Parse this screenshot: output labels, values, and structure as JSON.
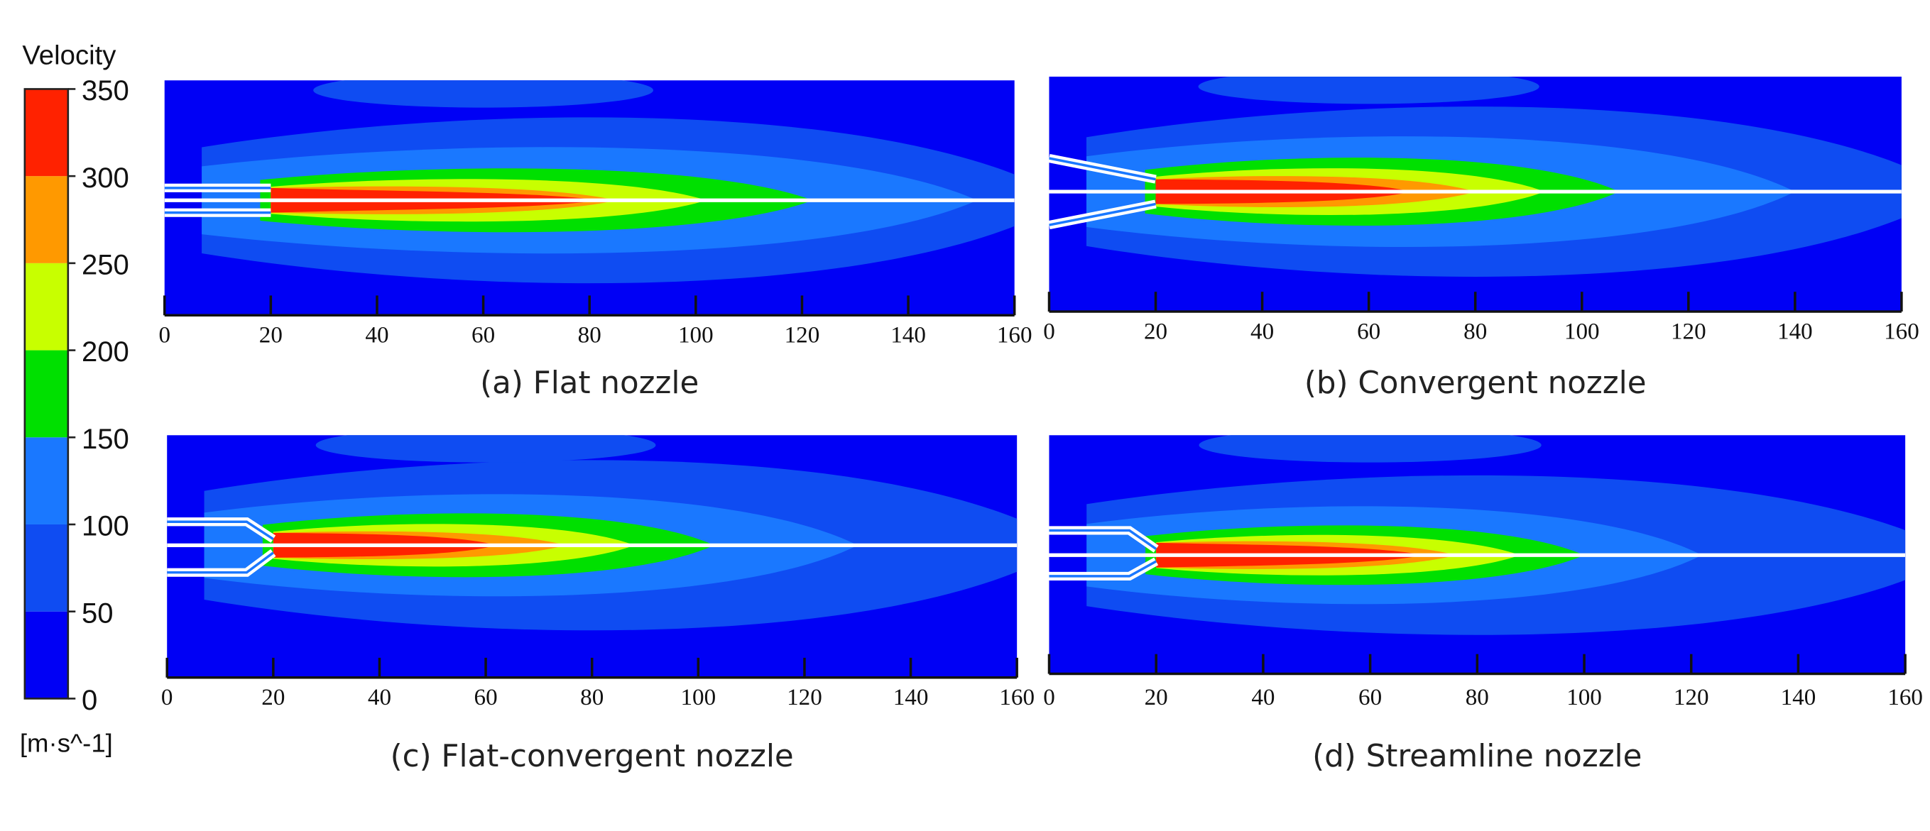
{
  "chart_data": {
    "type": "heatmap",
    "colorbar": {
      "title": "Velocity",
      "unit": "[m·s^-1]",
      "ticks": [
        "0",
        "50",
        "100",
        "150",
        "200",
        "250",
        "300",
        "350"
      ],
      "levels": [
        0,
        50,
        100,
        150,
        200,
        250,
        300,
        350
      ],
      "colors": [
        "#0000f5",
        "#0f4cf2",
        "#1a78ff",
        "#00e000",
        "#c8ff00",
        "#ff9900",
        "#ff2200"
      ]
    },
    "x_ticks": [
      "0",
      "20",
      "40",
      "60",
      "80",
      "100",
      "120",
      "140",
      "160"
    ],
    "xlim": [
      0,
      160
    ],
    "panels": [
      {
        "caption": "(a)  Flat nozzle",
        "nozzle": "flat",
        "nozzle_exit_x": 20,
        "band_end_x": {
          "50-100": 170,
          "100-150": 153,
          "150-200": 122,
          "200-250": 102,
          "250-300": 85,
          "300-350": 82
        }
      },
      {
        "caption": "(b)  Convergent nozzle",
        "nozzle": "convergent",
        "nozzle_exit_x": 20,
        "band_end_x": {
          "50-100": 170,
          "100-150": 140,
          "150-200": 107,
          "200-250": 93,
          "250-300": 80,
          "300-350": 68
        }
      },
      {
        "caption": "(c)  Flat-convergent nozzle",
        "nozzle": "flat-convergent",
        "nozzle_exit_x": 20,
        "band_end_x": {
          "50-100": 170,
          "100-150": 130,
          "150-200": 103,
          "200-250": 88,
          "250-300": 75,
          "300-350": 62
        }
      },
      {
        "caption": "(d)  Streamline nozzle",
        "nozzle": "streamline",
        "nozzle_exit_x": 20,
        "band_end_x": {
          "50-100": 170,
          "100-150": 122,
          "150-200": 100,
          "200-250": 88,
          "250-300": 76,
          "300-350": 70
        }
      }
    ]
  }
}
